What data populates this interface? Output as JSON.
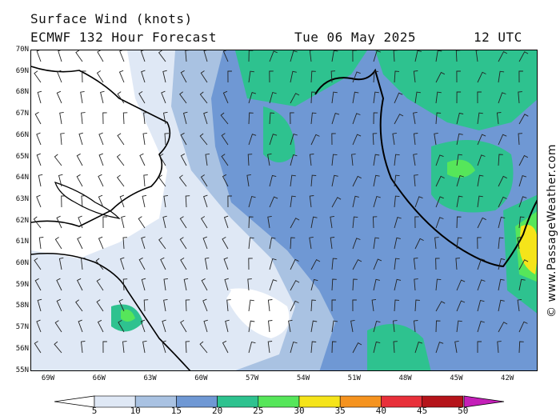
{
  "header": {
    "line1": "Surface Wind (knots)",
    "line2": "ECMWF 132 Hour Forecast",
    "date": "Tue 06 May 2025",
    "time": "12 UTC"
  },
  "credit": "© www.PassageWeather.com",
  "lat_labels": [
    "70N",
    "69N",
    "68N",
    "67N",
    "66N",
    "65N",
    "64N",
    "63N",
    "62N",
    "61N",
    "60N",
    "59N",
    "58N",
    "57N",
    "56N",
    "55N"
  ],
  "lon_labels": [
    "69W",
    "66W",
    "63W",
    "60W",
    "57W",
    "54W",
    "51W",
    "48W",
    "45W",
    "42W"
  ],
  "colorbar": {
    "labels": [
      "5",
      "10",
      "15",
      "20",
      "25",
      "30",
      "35",
      "40",
      "45",
      "50"
    ],
    "colors": [
      "#dfe8f5",
      "#a9c2e2",
      "#6f98d4",
      "#2ec28f",
      "#56e65a",
      "#f5e41a",
      "#f5931f",
      "#e8303a",
      "#b5141a",
      "#c41fb8"
    ]
  },
  "legend_colors": {
    "calm": "#ffffff",
    "light": "#dfe8f5",
    "moderate": "#a9c2e2",
    "fresh": "#6f98d4",
    "strong": "#2ec28f",
    "gale": "#56e65a",
    "severe": "#f5e41a"
  }
}
